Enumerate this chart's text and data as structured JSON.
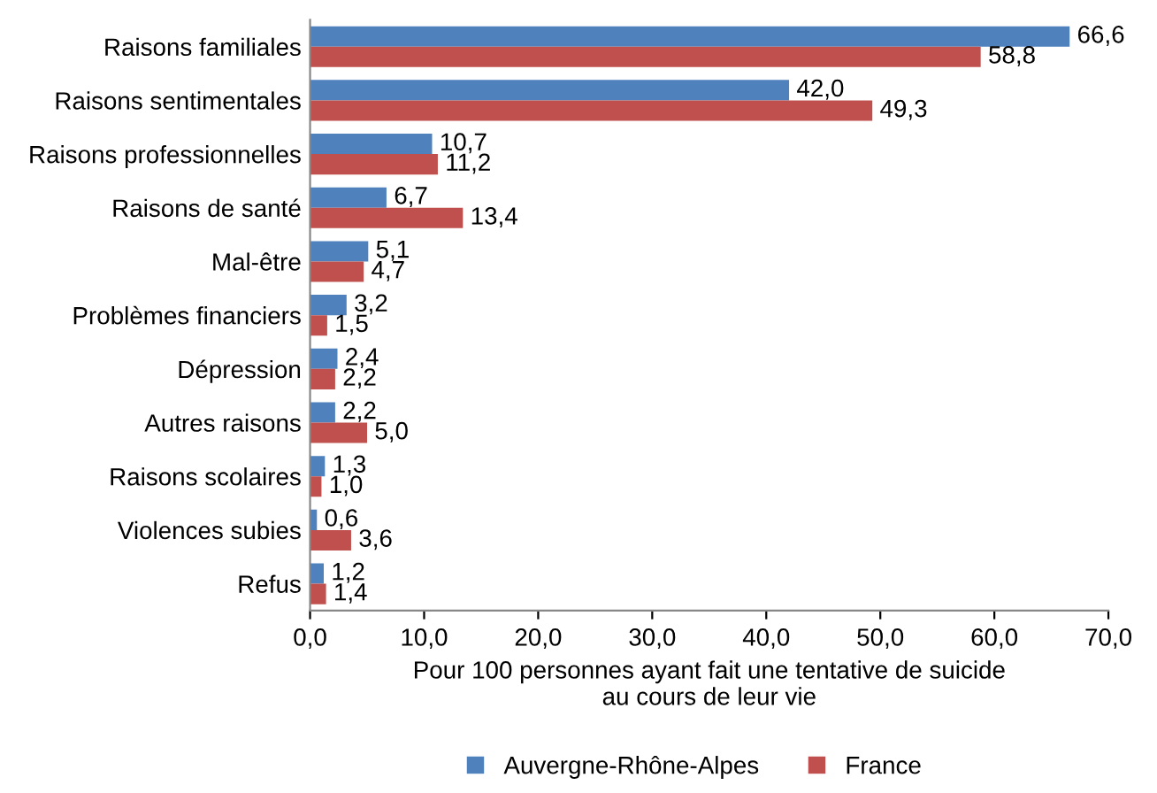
{
  "chart_data": {
    "type": "bar",
    "orientation": "horizontal",
    "categories": [
      "Raisons familiales",
      "Raisons sentimentales",
      "Raisons professionnelles",
      "Raisons de santé",
      "Mal-être",
      "Problèmes financiers",
      "Dépression",
      "Autres raisons",
      "Raisons scolaires",
      "Violences subies",
      "Refus"
    ],
    "series": [
      {
        "name": "Auvergne-Rhône-Alpes",
        "color": "#4f81bd",
        "values": [
          66.6,
          42.0,
          10.7,
          6.7,
          5.1,
          3.2,
          2.4,
          2.2,
          1.3,
          0.6,
          1.2
        ],
        "value_labels": [
          "66,6",
          "42,0",
          "10,7",
          "6,7",
          "5,1",
          "3,2",
          "2,4",
          "2,2",
          "1,3",
          "0,6",
          "1,2"
        ]
      },
      {
        "name": "France",
        "color": "#c0504d",
        "values": [
          58.8,
          49.3,
          11.2,
          13.4,
          4.7,
          1.5,
          2.2,
          5.0,
          1.0,
          3.6,
          1.4
        ],
        "value_labels": [
          "58,8",
          "49,3",
          "11,2",
          "13,4",
          "4,7",
          "1,5",
          "2,2",
          "5,0",
          "1,0",
          "3,6",
          "1,4"
        ]
      }
    ],
    "xlabel": "Pour 100 personnes ayant fait une tentative de suicide\nau cours de leur vie",
    "xlim": [
      0,
      70
    ],
    "xticks": [
      {
        "value": 0,
        "label": "0,0"
      },
      {
        "value": 10,
        "label": "10,0"
      },
      {
        "value": 20,
        "label": "20,0"
      },
      {
        "value": 30,
        "label": "30,0"
      },
      {
        "value": 40,
        "label": "40,0"
      },
      {
        "value": 50,
        "label": "50,0"
      },
      {
        "value": 60,
        "label": "60,0"
      },
      {
        "value": 70,
        "label": "70,0"
      }
    ],
    "grid": false,
    "legend": "bottom"
  }
}
